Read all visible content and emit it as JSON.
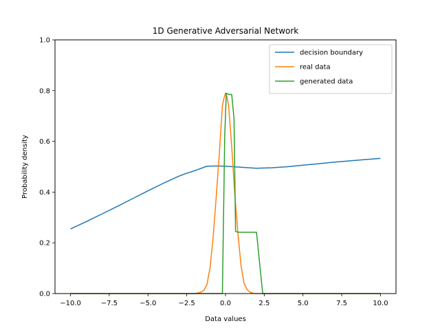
{
  "chart_data": {
    "type": "line",
    "title": "1D Generative Adversarial Network",
    "xlabel": "Data values",
    "ylabel": "Probability density",
    "xlim": [
      -11.0,
      11.0
    ],
    "ylim": [
      0.0,
      1.0
    ],
    "xticks": [
      -10.0,
      -7.5,
      -5.0,
      -2.5,
      0.0,
      2.5,
      5.0,
      7.5,
      10.0
    ],
    "xtick_labels": [
      "−10.0",
      "−7.5",
      "−5.0",
      "−2.5",
      "0.0",
      "2.5",
      "5.0",
      "7.5",
      "10.0"
    ],
    "yticks": [
      0.0,
      0.2,
      0.4,
      0.6,
      0.8,
      1.0
    ],
    "ytick_labels": [
      "0.0",
      "0.2",
      "0.4",
      "0.6",
      "0.8",
      "1.0"
    ],
    "grid": false,
    "legend_position": "top-right",
    "series": [
      {
        "name": "decision boundary",
        "color": "#1f77b4",
        "x": [
          -10,
          -9,
          -8,
          -7,
          -6,
          -5,
          -4,
          -3,
          -2.6,
          -2,
          -1.2,
          -0.5,
          0,
          0.5,
          1,
          1.5,
          2,
          2.5,
          3,
          4,
          5,
          6,
          7,
          8,
          9,
          10
        ],
        "y": [
          0.255,
          0.283,
          0.313,
          0.343,
          0.374,
          0.405,
          0.435,
          0.463,
          0.472,
          0.484,
          0.502,
          0.503,
          0.502,
          0.5,
          0.498,
          0.496,
          0.494,
          0.495,
          0.496,
          0.5,
          0.506,
          0.512,
          0.518,
          0.523,
          0.528,
          0.533
        ]
      },
      {
        "name": "real data",
        "color": "#ff7f0e",
        "x": [
          -10,
          -2.0,
          -1.8,
          -1.6,
          -1.4,
          -1.2,
          -1.0,
          -0.8,
          -0.6,
          -0.4,
          -0.2,
          -0.1,
          0.0,
          0.1,
          0.2,
          0.4,
          0.6,
          0.8,
          1.0,
          1.2,
          1.4,
          1.6,
          1.8,
          2.0,
          10
        ],
        "y": [
          0.0,
          0.0,
          0.002,
          0.005,
          0.013,
          0.035,
          0.1,
          0.22,
          0.38,
          0.55,
          0.74,
          0.77,
          0.79,
          0.775,
          0.74,
          0.58,
          0.39,
          0.24,
          0.11,
          0.04,
          0.015,
          0.005,
          0.001,
          0.0,
          0.0
        ]
      },
      {
        "name": "generated data",
        "color": "#2ca02c",
        "x": [
          -10,
          -0.2,
          -0.05,
          0.05,
          0.2,
          0.4,
          0.55,
          0.65,
          0.8,
          1.0,
          1.5,
          2.0,
          2.2,
          2.4,
          10
        ],
        "y": [
          0.0,
          0.0,
          0.62,
          0.79,
          0.785,
          0.785,
          0.69,
          0.245,
          0.242,
          0.242,
          0.242,
          0.242,
          0.12,
          0.0,
          0.0
        ]
      }
    ]
  }
}
